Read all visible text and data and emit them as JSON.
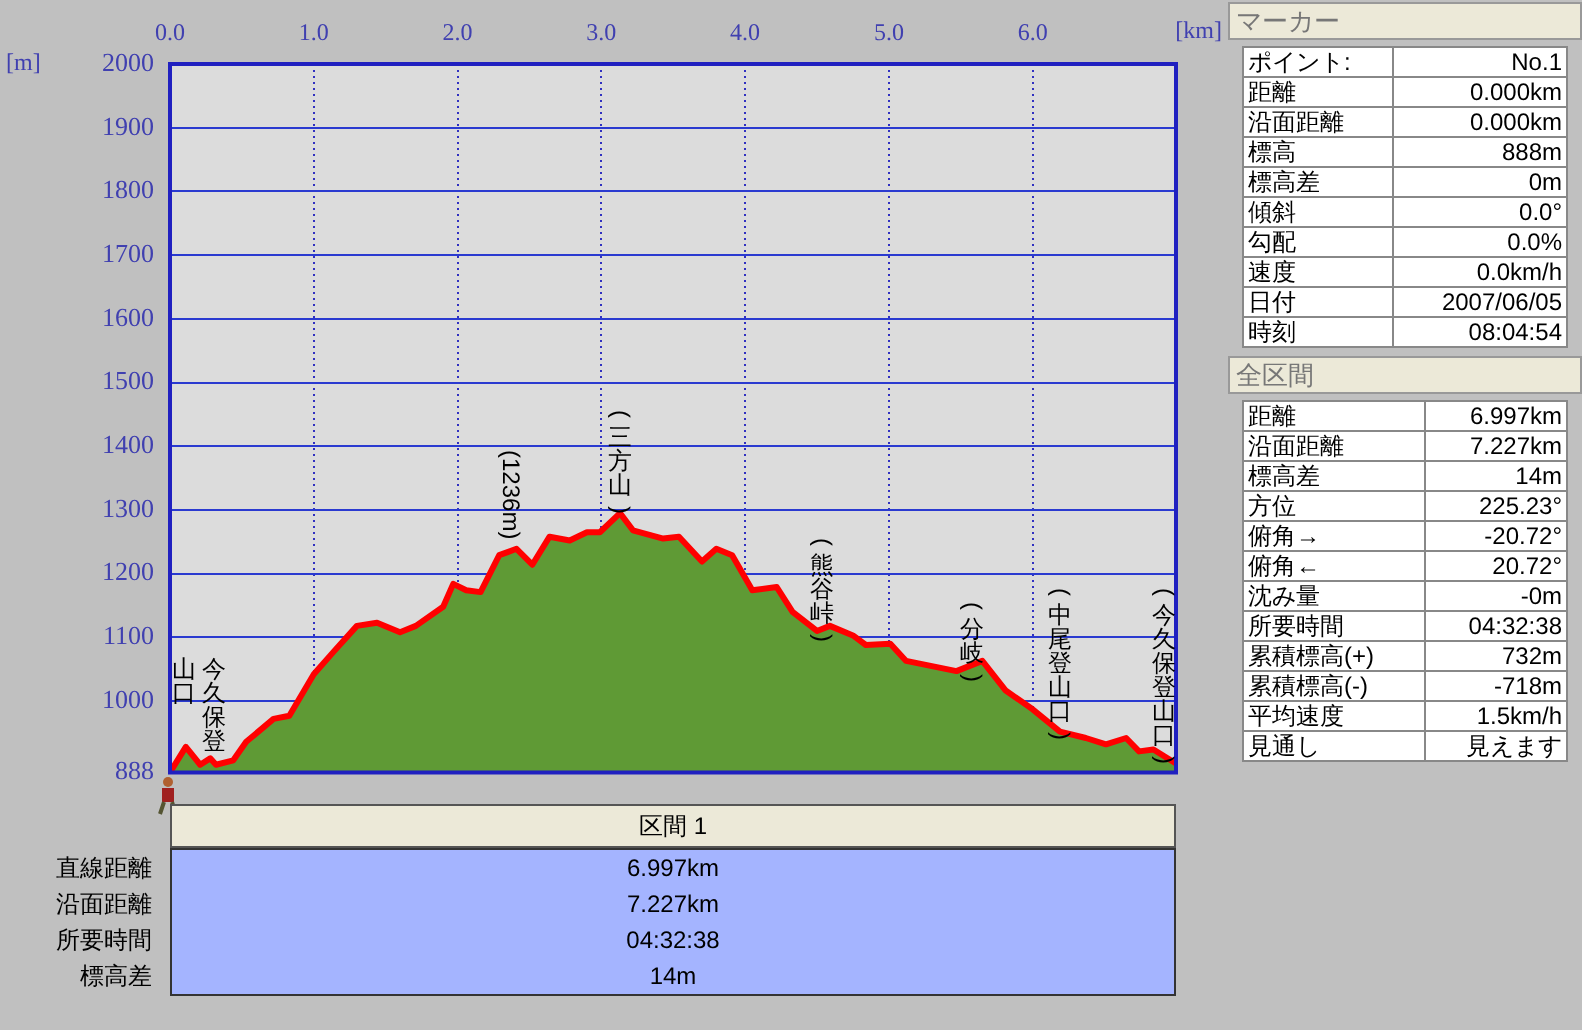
{
  "chart_data": [
    {
      "type": "area",
      "xlabel": "[km]",
      "ylabel": "[m]",
      "x": [
        0,
        0.11,
        0.21,
        0.28,
        0.32,
        0.44,
        0.53,
        0.72,
        0.83,
        1.0,
        1.14,
        1.3,
        1.44,
        1.6,
        1.71,
        1.9,
        1.97,
        2.06,
        2.16,
        2.29,
        2.41,
        2.52,
        2.64,
        2.78,
        2.9,
        2.99,
        3.13,
        3.22,
        3.43,
        3.54,
        3.7,
        3.8,
        3.91,
        4.05,
        4.22,
        4.33,
        4.5,
        4.59,
        4.75,
        4.84,
        5.01,
        5.12,
        5.47,
        5.65,
        5.81,
        6.0,
        6.19,
        6.37,
        6.51,
        6.65,
        6.74,
        6.84,
        6.997
      ],
      "series": [
        {
          "color": "#5f9a35",
          "values": [
            888,
            928,
            900,
            910,
            900,
            907,
            936,
            972,
            977,
            1042,
            1078,
            1118,
            1123,
            1108,
            1118,
            1148,
            1184,
            1174,
            1171,
            1229,
            1239,
            1214,
            1258,
            1252,
            1265,
            1265,
            1295,
            1268,
            1255,
            1258,
            1219,
            1239,
            1229,
            1174,
            1179,
            1140,
            1110,
            1118,
            1103,
            1088,
            1090,
            1063,
            1047,
            1063,
            1017,
            987,
            952,
            942,
            932,
            942,
            921,
            924,
            902
          ]
        }
      ],
      "xlim": [
        0,
        6.997
      ],
      "xticks": [
        {
          "value": 0,
          "label": "0.0"
        },
        {
          "value": 1,
          "label": "1.0"
        },
        {
          "value": 2,
          "label": "2.0"
        },
        {
          "value": 3,
          "label": "3.0"
        },
        {
          "value": 4,
          "label": "4.0"
        },
        {
          "value": 5,
          "label": "5.0"
        },
        {
          "value": 6,
          "label": "6.0"
        }
      ],
      "ylim": [
        888,
        2000
      ],
      "yticks": [
        888,
        1000,
        1100,
        1200,
        1300,
        1400,
        1500,
        1600,
        1700,
        1800,
        1900,
        2000
      ],
      "grid": true,
      "annotations": [
        "今久保登山口",
        "(1236m)",
        "(三方山)",
        "(熊谷峠)",
        "(分岐)",
        "(中尾登山口)",
        "(今久保登山口)"
      ]
    },
    {
      "type": "other",
      "title": "マーカー",
      "annotations": [
        "ポイント:",
        "No.1",
        "距離",
        "0.000km",
        "沿面距離",
        "0.000km",
        "標高",
        "888m",
        "標高差",
        "0m",
        "傾斜",
        "0.0°",
        "勾配",
        "0.0%",
        "速度",
        "0.0km/h",
        "日付",
        "2007/06/05",
        "時刻",
        "08:04:54"
      ]
    },
    {
      "type": "other",
      "title": "全区間",
      "annotations": [
        "距離",
        "6.997km",
        "沿面距離",
        "7.227km",
        "標高差",
        "14m",
        "方位",
        "225.23°",
        "俯角→",
        "-20.72°",
        "俯角←",
        "20.72°",
        "沈み量",
        "-0m",
        "所要時間",
        "04:32:38",
        "累積標高(+)",
        "732m",
        "累積標高(-)",
        "-718m",
        "平均速度",
        "1.5km/h",
        "見通し",
        "見えます"
      ]
    },
    {
      "type": "other",
      "title": "区間 1",
      "annotations": [
        "直線距離",
        "6.997km",
        "沿面距離",
        "7.227km",
        "所要時間",
        "04:32:38",
        "標高差",
        "14m"
      ]
    }
  ]
}
